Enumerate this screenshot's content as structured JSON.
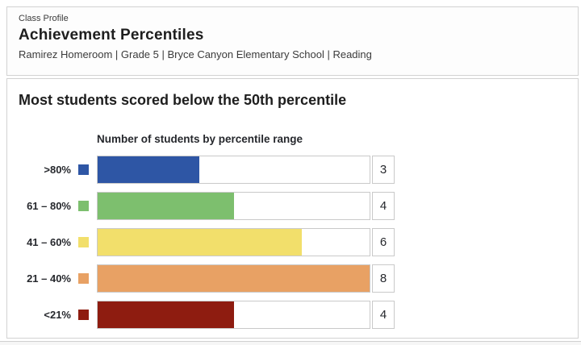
{
  "header": {
    "eyebrow": "Class Profile",
    "title": "Achievement Percentiles",
    "subtitle": "Ramirez Homeroom | Grade 5 | Bryce Canyon Elementary School | Reading"
  },
  "main": {
    "headline": "Most students scored below the 50th percentile"
  },
  "chart_data": {
    "type": "bar",
    "orientation": "horizontal",
    "title": "Number of students by percentile range",
    "categories": [
      ">80%",
      "61 – 80%",
      "41 – 60%",
      "21 – 40%",
      "<21%"
    ],
    "values": [
      3,
      4,
      6,
      8,
      4
    ],
    "colors": [
      "#2e56a5",
      "#7dbf6e",
      "#f2df6b",
      "#e8a164",
      "#8e1c10"
    ],
    "xlim": [
      0,
      8
    ],
    "value_labels_shown": true,
    "grid": false,
    "legend_position": "left-swatches"
  }
}
